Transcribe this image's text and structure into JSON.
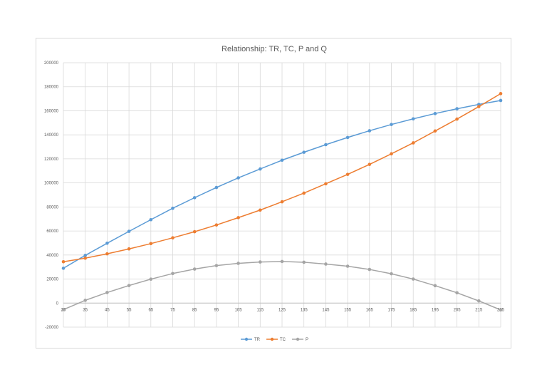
{
  "chart_data": {
    "type": "line",
    "title": "Relationship: TR, TC, P and Q",
    "xlabel": "",
    "ylabel": "",
    "x": [
      25,
      35,
      45,
      55,
      65,
      75,
      85,
      95,
      105,
      115,
      125,
      135,
      145,
      155,
      165,
      175,
      185,
      195,
      205,
      215,
      225
    ],
    "x_tick_labels": [
      "25",
      "35",
      "45",
      "55",
      "65",
      "75",
      "85",
      "95",
      "105",
      "115",
      "125",
      "135",
      "145",
      "155",
      "165",
      "175",
      "185",
      "195",
      "205",
      "215",
      "225"
    ],
    "ylim": [
      -20000,
      200000
    ],
    "y_ticks": [
      -20000,
      0,
      20000,
      40000,
      60000,
      80000,
      100000,
      120000,
      140000,
      160000,
      180000,
      200000
    ],
    "y_tick_labels": [
      "-20000",
      "0",
      "20000",
      "40000",
      "60000",
      "80000",
      "100000",
      "120000",
      "140000",
      "160000",
      "180000",
      "200000"
    ],
    "grid": true,
    "legend_position": "bottom",
    "series": [
      {
        "name": "TR",
        "color": "#5b9bd5",
        "values": [
          29000,
          39700,
          49800,
          59700,
          69400,
          78900,
          87700,
          96200,
          104200,
          111600,
          118900,
          125500,
          131800,
          137800,
          143400,
          148600,
          153300,
          157700,
          161700,
          165300,
          168600
        ]
      },
      {
        "name": "TC",
        "color": "#ed7d31",
        "values": [
          34400,
          37400,
          41000,
          45100,
          49500,
          54300,
          59400,
          65000,
          71100,
          77400,
          84300,
          91500,
          99300,
          107100,
          115400,
          124200,
          133300,
          143200,
          153100,
          163500,
          174300
        ]
      },
      {
        "name": "P",
        "color": "#a5a5a5",
        "values": [
          -5400,
          2300,
          8800,
          14600,
          19900,
          24600,
          28300,
          31200,
          33100,
          34200,
          34600,
          34000,
          32500,
          30700,
          28000,
          24400,
          20000,
          14500,
          8600,
          1800,
          -5700
        ]
      }
    ]
  }
}
